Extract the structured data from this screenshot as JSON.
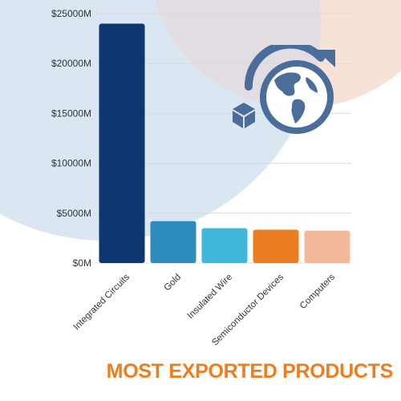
{
  "colors": {
    "ring_blue": "#dbe6f3",
    "ring_peach": "#f6e2d6",
    "ring_overlap": "#e2dce3",
    "icon": "#4a6d99",
    "gridline": "#d9d9d9",
    "title": "#ee7d20"
  },
  "icon_name": "globe-export-icon",
  "chart_data": {
    "type": "bar",
    "title": "MOST EXPORTED PRODUCTS",
    "categories": [
      "Integrated Circuits",
      "Gold",
      "Insulated Wire",
      "Semiconductor Devices",
      "Computers"
    ],
    "values": [
      24000,
      4200,
      3500,
      3350,
      3250
    ],
    "bar_colors": [
      "#0e3772",
      "#2e8bbe",
      "#3fb6dc",
      "#ec7d22",
      "#f2b99a"
    ],
    "yticks": [
      0,
      5000,
      10000,
      15000,
      20000,
      25000
    ],
    "ytick_labels": [
      "$0M",
      "$5000M",
      "$10000M",
      "$15000M",
      "$20000M",
      "$25000M"
    ],
    "ylim": [
      0,
      25000
    ],
    "xlabel": "",
    "ylabel": "",
    "grid": true,
    "legend": "none"
  }
}
